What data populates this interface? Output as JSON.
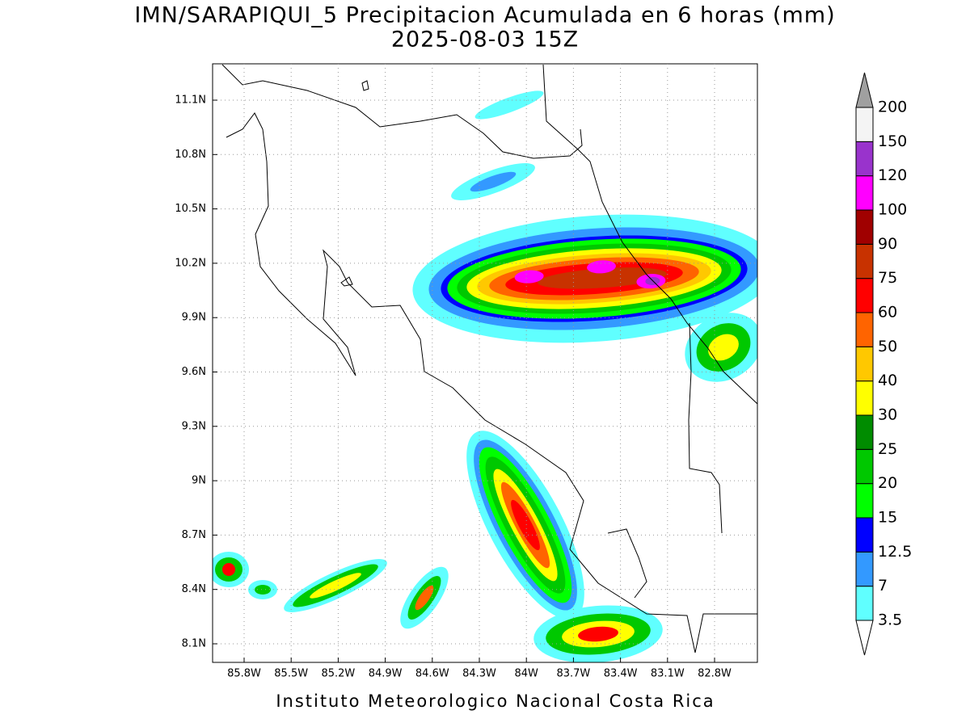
{
  "title": "IMN/SARAPIQUI_5 Precipitacion Acumulada en 6 horas (mm)",
  "subtitle": "2025-08-03 15Z",
  "lat_labels": [
    "11.1N",
    "10.8N",
    "10.5N",
    "10.2N",
    "9.9N",
    "9.6N",
    "9.3N",
    "9N",
    "8.7N",
    "8.4N",
    "8.1N"
  ],
  "lon_labels": [
    "85.8W",
    "85.5W",
    "85.2W",
    "84.9W",
    "84.6W",
    "84.3W",
    "84W",
    "83.7W",
    "83.4W",
    "83.1W",
    "82.8W"
  ],
  "colorbar": {
    "levels": [
      3.5,
      7,
      12.5,
      15,
      20,
      25,
      30,
      40,
      50,
      60,
      75,
      90,
      100,
      120,
      150,
      200
    ],
    "colors": [
      "#60ffff",
      "#3399ff",
      "#0000ff",
      "#00ff00",
      "#00c800",
      "#008c00",
      "#ffff00",
      "#ffc800",
      "#ff6400",
      "#ff0000",
      "#c83200",
      "#a00000",
      "#ff00ff",
      "#9933cc",
      "#f4f4f4"
    ],
    "under_color": "#ffffff",
    "over_color": "#a0a0a0"
  },
  "footer": "Instituto Meteorologico Nacional Costa Rica"
}
